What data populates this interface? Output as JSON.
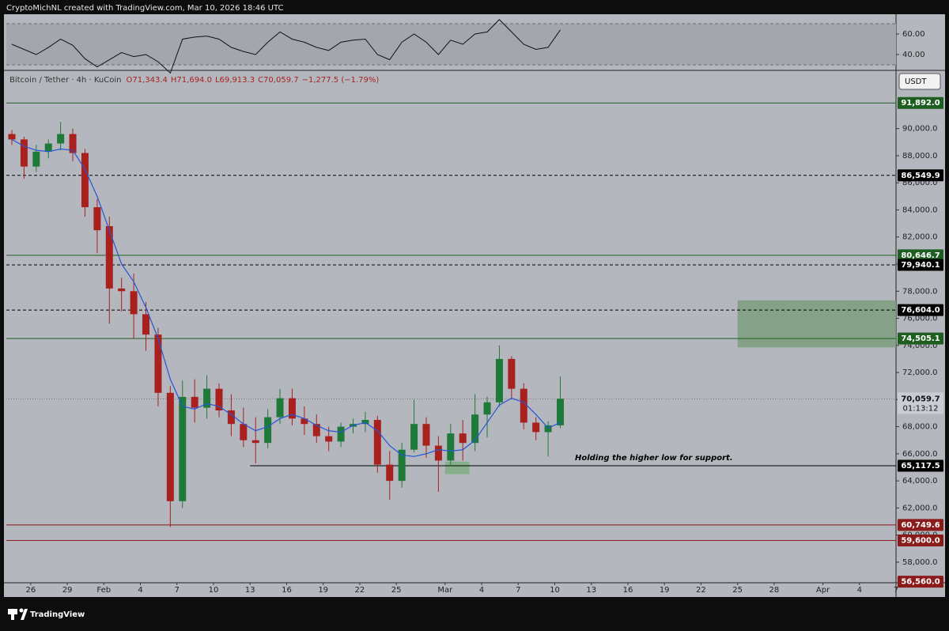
{
  "chart_data": {
    "type": "candlestick",
    "header": "CryptoMichNL created with TradingView.com, Mar 10, 2026 18:46 UTC",
    "symbol": "Bitcoin / Tether · 4h · KuCoin",
    "ohlc_text": [
      "O71,343.4",
      "H71,694.0",
      "L69,913.3",
      "C70,059.7",
      "−1,277.5 (−1.79%)"
    ],
    "currency": "USDT",
    "brand": "TradingView",
    "annotation": "Holding the higher low for support.",
    "up_color": "#1f7a3a",
    "down_color": "#a8211f",
    "x": [
      "Jan 24",
      "Jan 25",
      "Jan 26",
      "Jan 27",
      "Jan 28",
      "Jan 29",
      "Jan 30",
      "Jan 31",
      "Feb 1",
      "Feb 2",
      "Feb 3",
      "Feb 4",
      "Feb 5",
      "Feb 6",
      "Feb 7",
      "Feb 8",
      "Feb 9",
      "Feb 10",
      "Feb 11",
      "Feb 12",
      "Feb 13",
      "Feb 14",
      "Feb 15",
      "Feb 16",
      "Feb 17",
      "Feb 18",
      "Feb 19",
      "Feb 20",
      "Feb 21",
      "Feb 22",
      "Feb 23",
      "Feb 24",
      "Feb 25",
      "Feb 26",
      "Feb 27",
      "Feb 28",
      "Mar 1",
      "Mar 2",
      "Mar 3",
      "Mar 4",
      "Mar 5",
      "Mar 6",
      "Mar 7",
      "Mar 8",
      "Mar 9",
      "Mar 10"
    ],
    "open": [
      89600,
      89200,
      87200,
      88300,
      88900,
      89600,
      88200,
      84200,
      82800,
      78200,
      78000,
      76300,
      74800,
      70500,
      62500,
      70200,
      69400,
      70800,
      69200,
      68200,
      67000,
      66800,
      68700,
      70100,
      68600,
      68200,
      67300,
      66900,
      68000,
      68200,
      68500,
      65200,
      64000,
      66300,
      68200,
      66600,
      65500,
      67500,
      66800,
      68900,
      69800,
      73000,
      70800,
      68300,
      67600,
      68100
    ],
    "high": [
      89900,
      89400,
      88800,
      89200,
      90500,
      90000,
      88500,
      84800,
      83500,
      79000,
      79300,
      77200,
      75300,
      71000,
      71400,
      71500,
      71800,
      71200,
      70400,
      69400,
      68700,
      69300,
      70800,
      70800,
      69500,
      68900,
      68000,
      68300,
      68600,
      69100,
      68800,
      66200,
      66800,
      70000,
      68700,
      67300,
      68200,
      68500,
      70400,
      70200,
      74000,
      73200,
      71200,
      68700,
      68400,
      71694.0
    ],
    "low": [
      88800,
      86300,
      86800,
      87800,
      88400,
      87600,
      83500,
      80800,
      75600,
      76500,
      74500,
      73600,
      69500,
      60600,
      62000,
      68300,
      68600,
      68700,
      67300,
      66500,
      65300,
      66400,
      68200,
      68100,
      67400,
      66800,
      66200,
      66500,
      67500,
      67600,
      64600,
      62600,
      63500,
      66100,
      65700,
      63200,
      65100,
      65500,
      66200,
      67200,
      69500,
      70000,
      67800,
      67000,
      65800,
      67900
    ],
    "close": [
      89200,
      87200,
      88300,
      88900,
      89600,
      88200,
      84200,
      82500,
      78200,
      78000,
      76300,
      74800,
      70500,
      62500,
      70200,
      69400,
      70800,
      69200,
      68200,
      67000,
      66800,
      68700,
      70100,
      68600,
      68200,
      67300,
      66900,
      68000,
      68200,
      68500,
      65200,
      64000,
      66300,
      68200,
      66600,
      65500,
      67500,
      66800,
      68900,
      69800,
      73000,
      70800,
      68300,
      67600,
      68100,
      70059.7
    ],
    "ma": {
      "color": "#2455d8",
      "values": [
        89200,
        88700,
        88400,
        88300,
        88500,
        88400,
        87000,
        85000,
        82500,
        80000,
        78700,
        76800,
        74500,
        71500,
        69500,
        69300,
        69700,
        69500,
        68900,
        68200,
        67700,
        68000,
        68600,
        68900,
        68600,
        68100,
        67700,
        67600,
        68100,
        68300,
        67700,
        66600,
        65900,
        65800,
        66000,
        66300,
        66200,
        66300,
        67000,
        68300,
        69600,
        70100,
        69800,
        68900,
        67900,
        68300
      ]
    },
    "xlim": [
      "Jan 24",
      "Apr 7"
    ],
    "xticks": [
      {
        "value": "Jan 26",
        "label": "26"
      },
      {
        "value": "Jan 29",
        "label": "29"
      },
      {
        "value": "Feb 1",
        "label": "Feb"
      },
      {
        "value": "Feb 4",
        "label": "4"
      },
      {
        "value": "Feb 7",
        "label": "7"
      },
      {
        "value": "Feb 10",
        "label": "10"
      },
      {
        "value": "Feb 13",
        "label": "13"
      },
      {
        "value": "Feb 16",
        "label": "16"
      },
      {
        "value": "Feb 19",
        "label": "19"
      },
      {
        "value": "Feb 22",
        "label": "22"
      },
      {
        "value": "Feb 25",
        "label": "25"
      },
      {
        "value": "Mar 1",
        "label": "Mar"
      },
      {
        "value": "Mar 4",
        "label": "4"
      },
      {
        "value": "Mar 7",
        "label": "7"
      },
      {
        "value": "Mar 10",
        "label": "10"
      },
      {
        "value": "Mar 13",
        "label": "13"
      },
      {
        "value": "Mar 16",
        "label": "16"
      },
      {
        "value": "Mar 19",
        "label": "19"
      },
      {
        "value": "Mar 22",
        "label": "22"
      },
      {
        "value": "Mar 25",
        "label": "25"
      },
      {
        "value": "Mar 28",
        "label": "28"
      },
      {
        "value": "Apr 1",
        "label": "Apr"
      },
      {
        "value": "Apr 4",
        "label": "4"
      },
      {
        "value": "Apr 7",
        "label": "7"
      }
    ],
    "ylim": [
      56480,
      94240
    ],
    "yticks": [
      {
        "value": 58000,
        "label": "58,000.0"
      },
      {
        "value": 60000,
        "label": "60,000.0"
      },
      {
        "value": 62000,
        "label": "62,000.0"
      },
      {
        "value": 64000,
        "label": "64,000.0"
      },
      {
        "value": 66000,
        "label": "66,000.0"
      },
      {
        "value": 68000,
        "label": "68,000.0"
      },
      {
        "value": 70000,
        "label": "70,000.0"
      },
      {
        "value": 72000,
        "label": "72,000.0"
      },
      {
        "value": 74000,
        "label": "74,000.0"
      },
      {
        "value": 76000,
        "label": "76,000.0"
      },
      {
        "value": 78000,
        "label": "78,000.0"
      },
      {
        "value": 80000,
        "label": "80,000.0"
      },
      {
        "value": 82000,
        "label": "82,000.0"
      },
      {
        "value": 84000,
        "label": "84,000.0"
      },
      {
        "value": 86000,
        "label": "86,000.0"
      },
      {
        "value": 88000,
        "label": "88,000.0"
      },
      {
        "value": 90000,
        "label": "90,000.0"
      }
    ],
    "levels": [
      {
        "value": 91892.0,
        "label": "91,892.0",
        "style": "solid",
        "color": "#1e5e20"
      },
      {
        "value": 86549.9,
        "label": "86,549.9",
        "style": "dashed",
        "color": "#000000"
      },
      {
        "value": 80646.7,
        "label": "80,646.7",
        "style": "solid",
        "color": "#1e5e20"
      },
      {
        "value": 79940.1,
        "label": "79,940.1",
        "style": "dashed",
        "color": "#000000"
      },
      {
        "value": 76604.0,
        "label": "76,604.0",
        "style": "dashed",
        "color": "#000000"
      },
      {
        "value": 74505.1,
        "label": "74,505.1",
        "style": "solid",
        "color": "#1e5e20"
      },
      {
        "value": 65117.5,
        "label": "65,117.5",
        "style": "solid",
        "color": "#000000",
        "start": "Feb 13"
      },
      {
        "value": 60749.6,
        "label": "60,749.6",
        "style": "solid",
        "color": "#8b1a1a"
      },
      {
        "value": 59600.0,
        "label": "59,600.0",
        "style": "solid",
        "color": "#8b1a1a"
      },
      {
        "value": 56560.0,
        "label": "56,560.0",
        "style": "none",
        "color": "#8b1a1a"
      }
    ],
    "last": {
      "value": 70059.7,
      "label": "70,059.7",
      "countdown": "01:13:12"
    },
    "zones": [
      {
        "from": "Mar 25",
        "to": "Apr 7",
        "low": 73850,
        "high": 77330,
        "color": "#7d9f80"
      },
      {
        "from": "Mar 1",
        "to": "Mar 3",
        "low": 64500,
        "high": 65420,
        "color": "#7fae84"
      }
    ],
    "rsi": {
      "color": "#111111",
      "ylim": [
        25.4,
        79.2
      ],
      "yticks": [
        {
          "value": 60,
          "label": "60.00"
        },
        {
          "value": 40,
          "label": "40.00"
        }
      ],
      "band": [
        30,
        70
      ],
      "values": [
        50,
        45,
        40,
        47,
        55,
        49,
        36,
        28,
        35,
        42,
        38,
        40,
        33,
        22,
        55,
        57,
        58,
        55,
        47,
        43,
        40,
        52,
        62,
        55,
        52,
        47,
        44,
        52,
        54,
        55,
        40,
        35,
        52,
        60,
        52,
        40,
        54,
        50,
        60,
        62,
        74,
        62,
        50,
        45,
        47,
        64
      ]
    }
  }
}
